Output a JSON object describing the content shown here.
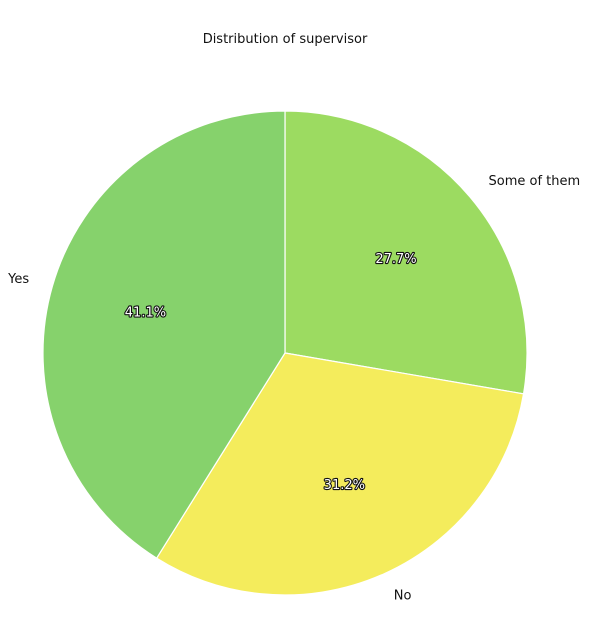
{
  "chart_data": {
    "type": "pie",
    "title": "Distribution of supervisor",
    "categories": [
      "Some of them",
      "No",
      "Yes"
    ],
    "values": [
      27.7,
      31.2,
      41.1
    ],
    "labels": [
      "27.7%",
      "31.2%",
      "41.1%"
    ],
    "colors": [
      "#9cdb61",
      "#f4ec5c",
      "#86d26c"
    ],
    "start_angle_deg": 90,
    "direction": "clockwise"
  }
}
